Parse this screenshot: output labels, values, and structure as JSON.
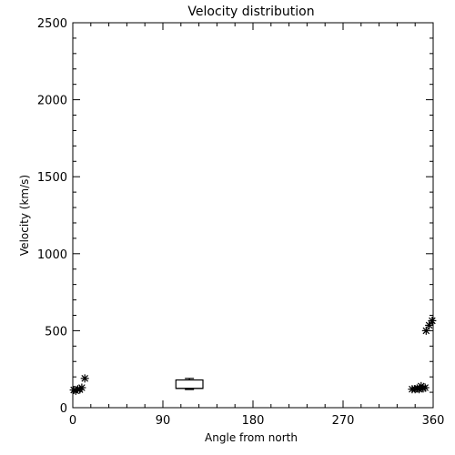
{
  "chart_data": {
    "type": "scatter",
    "title": "Velocity distribution",
    "xlabel": "Angle from north",
    "ylabel": "Velocity (km/s)",
    "xlim": [
      0,
      360
    ],
    "ylim": [
      0,
      2500
    ],
    "xticks": [
      0,
      90,
      180,
      270,
      360
    ],
    "yticks": [
      0,
      500,
      1000,
      1500,
      2000,
      2500
    ],
    "grid": false,
    "series": [
      {
        "marker": "asterisk",
        "points": [
          {
            "x": 1,
            "y": 115
          },
          {
            "x": 3,
            "y": 110
          },
          {
            "x": 5,
            "y": 120
          },
          {
            "x": 7,
            "y": 118
          },
          {
            "x": 9,
            "y": 130
          },
          {
            "x": 12,
            "y": 190
          },
          {
            "x": 339,
            "y": 120
          },
          {
            "x": 342,
            "y": 120
          },
          {
            "x": 344,
            "y": 125
          },
          {
            "x": 346,
            "y": 120
          },
          {
            "x": 348,
            "y": 140
          },
          {
            "x": 350,
            "y": 125
          },
          {
            "x": 352,
            "y": 130
          },
          {
            "x": 353,
            "y": 500
          },
          {
            "x": 356,
            "y": 535
          },
          {
            "x": 359,
            "y": 565
          }
        ]
      }
    ],
    "boxplot": {
      "x_start": 103,
      "x_end": 130,
      "min": 118,
      "q1": 125,
      "median": 125,
      "q3": 180,
      "max": 190
    }
  }
}
